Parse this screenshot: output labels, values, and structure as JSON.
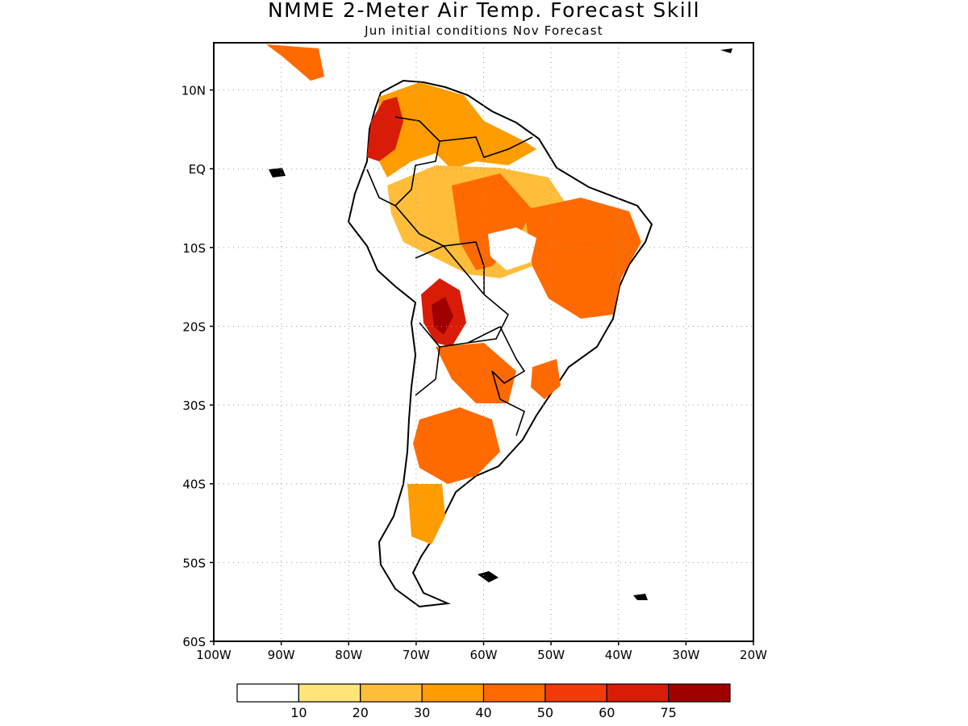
{
  "title": "NMME 2-Meter Air Temp. Forecast Skill",
  "subtitle": "Jun initial conditions   Nov Forecast",
  "map": {
    "lon_range": [
      -100,
      -20
    ],
    "lat_range": [
      -60,
      16
    ],
    "lon_ticks": [
      "100W",
      "90W",
      "80W",
      "70W",
      "60W",
      "50W",
      "40W",
      "30W",
      "20W"
    ],
    "lat_ticks": [
      "10N",
      "EQ",
      "10S",
      "20S",
      "30S",
      "40S",
      "50S",
      "60S"
    ],
    "gridlines": "dotted"
  },
  "colorbar": {
    "labels": [
      "10",
      "20",
      "30",
      "40",
      "50",
      "60",
      "75"
    ],
    "colors": [
      "#ffffff",
      "#ffe57a",
      "#ffbd3a",
      "#ff9c00",
      "#ff6a00",
      "#f23a0a",
      "#d81c08",
      "#a00000"
    ]
  }
}
